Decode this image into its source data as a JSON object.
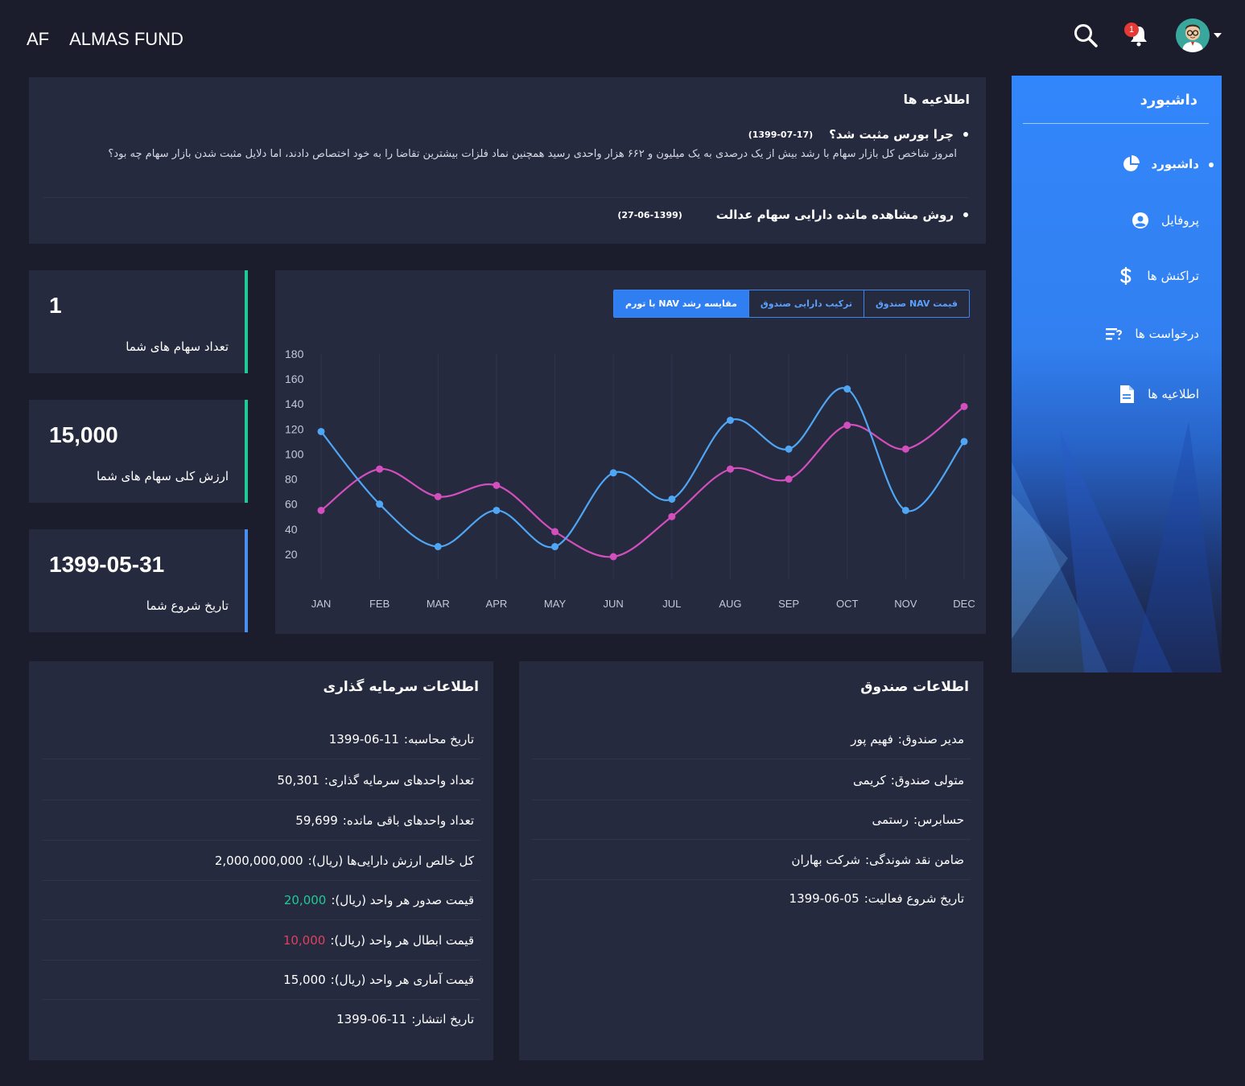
{
  "brand": {
    "short": "AF",
    "name": "ALMAS FUND"
  },
  "header": {
    "notification_count": "1"
  },
  "announcements": {
    "title": "اطلاعیه ها",
    "items": [
      {
        "title": "چرا بورس مثبت شد؟",
        "date": "(1399-07-17)",
        "body": "امروز شاخص کل بازار سهام با رشد بیش از یک درصدی به یک میلیون و ۶۶۲ هزار واحدی رسید همچنین نماد فلزات بیشترین تقاضا را به خود اختصاص دادند، اما دلایل مثبت شدن بازار سهام چه بود؟"
      },
      {
        "title": "روش مشاهده مانده دارایی سهام عدالت",
        "date": "(27-06-1399)"
      }
    ]
  },
  "stats": [
    {
      "value": "1",
      "label": "تعداد سهام های شما",
      "color": "#20c997"
    },
    {
      "value": "15,000",
      "label": "ارزش کلی سهام های شما",
      "color": "#20c997"
    },
    {
      "value": "1399-05-31",
      "label": "تاریخ شروع شما",
      "color": "#4a8ef0"
    }
  ],
  "chart_tabs": [
    {
      "label": "قیمت NAV صندوق",
      "active": false
    },
    {
      "label": "ترکیب دارایی صندوق",
      "active": false
    },
    {
      "label": "مقایسه رشد NAV با تورم",
      "active": true
    }
  ],
  "chart_data": {
    "type": "line",
    "categories": [
      "JAN",
      "FEB",
      "MAR",
      "APR",
      "MAY",
      "JUN",
      "JUL",
      "AUG",
      "SEP",
      "OCT",
      "NOV",
      "DEC"
    ],
    "y_ticks": [
      20,
      40,
      60,
      80,
      100,
      120,
      140,
      160,
      180
    ],
    "ylim": [
      0,
      180
    ],
    "grid": "vertical",
    "series": [
      {
        "color": "#4ea6f5",
        "values": [
          118,
          60,
          26,
          55,
          26,
          85,
          64,
          127,
          104,
          152,
          55,
          110
        ]
      },
      {
        "color": "#d24fbd",
        "values": [
          55,
          88,
          66,
          75,
          38,
          18,
          50,
          88,
          80,
          123,
          104,
          138
        ]
      }
    ]
  },
  "sidebar": {
    "title": "داشبورد",
    "items": [
      {
        "label": "داشبورد",
        "icon": "pie-chart-icon",
        "active": true
      },
      {
        "label": "پروفایل",
        "icon": "user-circle-icon",
        "active": false
      },
      {
        "label": "تراکنش ها",
        "icon": "dollar-icon",
        "active": false
      },
      {
        "label": "درخواست ها",
        "icon": "request-list-icon",
        "active": false
      },
      {
        "label": "اطلاعیه ها",
        "icon": "document-icon",
        "active": false
      }
    ]
  },
  "investment_info": {
    "title": "اطلاعات سرمایه گذاری",
    "rows": [
      {
        "label": "تاریخ محاسبه:",
        "value": "1399-06-11"
      },
      {
        "label": "تعداد واحدهای سرمایه گذاری:",
        "value": "50,301"
      },
      {
        "label": "تعداد واحدهای باقی مانده:",
        "value": "59,699"
      },
      {
        "label": "کل خالص ارزش دارایی‌ها (ریال):",
        "value": "2,000,000,000"
      },
      {
        "label": "قیمت صدور هر واحد (ریال):",
        "value": "20,000",
        "tone": "green"
      },
      {
        "label": "قیمت ابطال هر واحد (ریال):",
        "value": "10,000",
        "tone": "red"
      },
      {
        "label": "قیمت آماری هر واحد (ریال):",
        "value": "15,000"
      },
      {
        "label": "تاریخ انتشار:",
        "value": "1399-06-11"
      }
    ]
  },
  "fund_info": {
    "title": "اطلاعات صندوق",
    "rows": [
      {
        "label": "مدیر صندوق:",
        "value": "فهیم پور"
      },
      {
        "label": "متولی صندوق:",
        "value": "کریمی"
      },
      {
        "label": "حسابرس:",
        "value": "رستمی"
      },
      {
        "label": "ضامن نقد شوندگی:",
        "value": "شرکت بهاران"
      },
      {
        "label": "تاریخ شروع فعالیت:",
        "value": "1399-06-05"
      }
    ]
  }
}
